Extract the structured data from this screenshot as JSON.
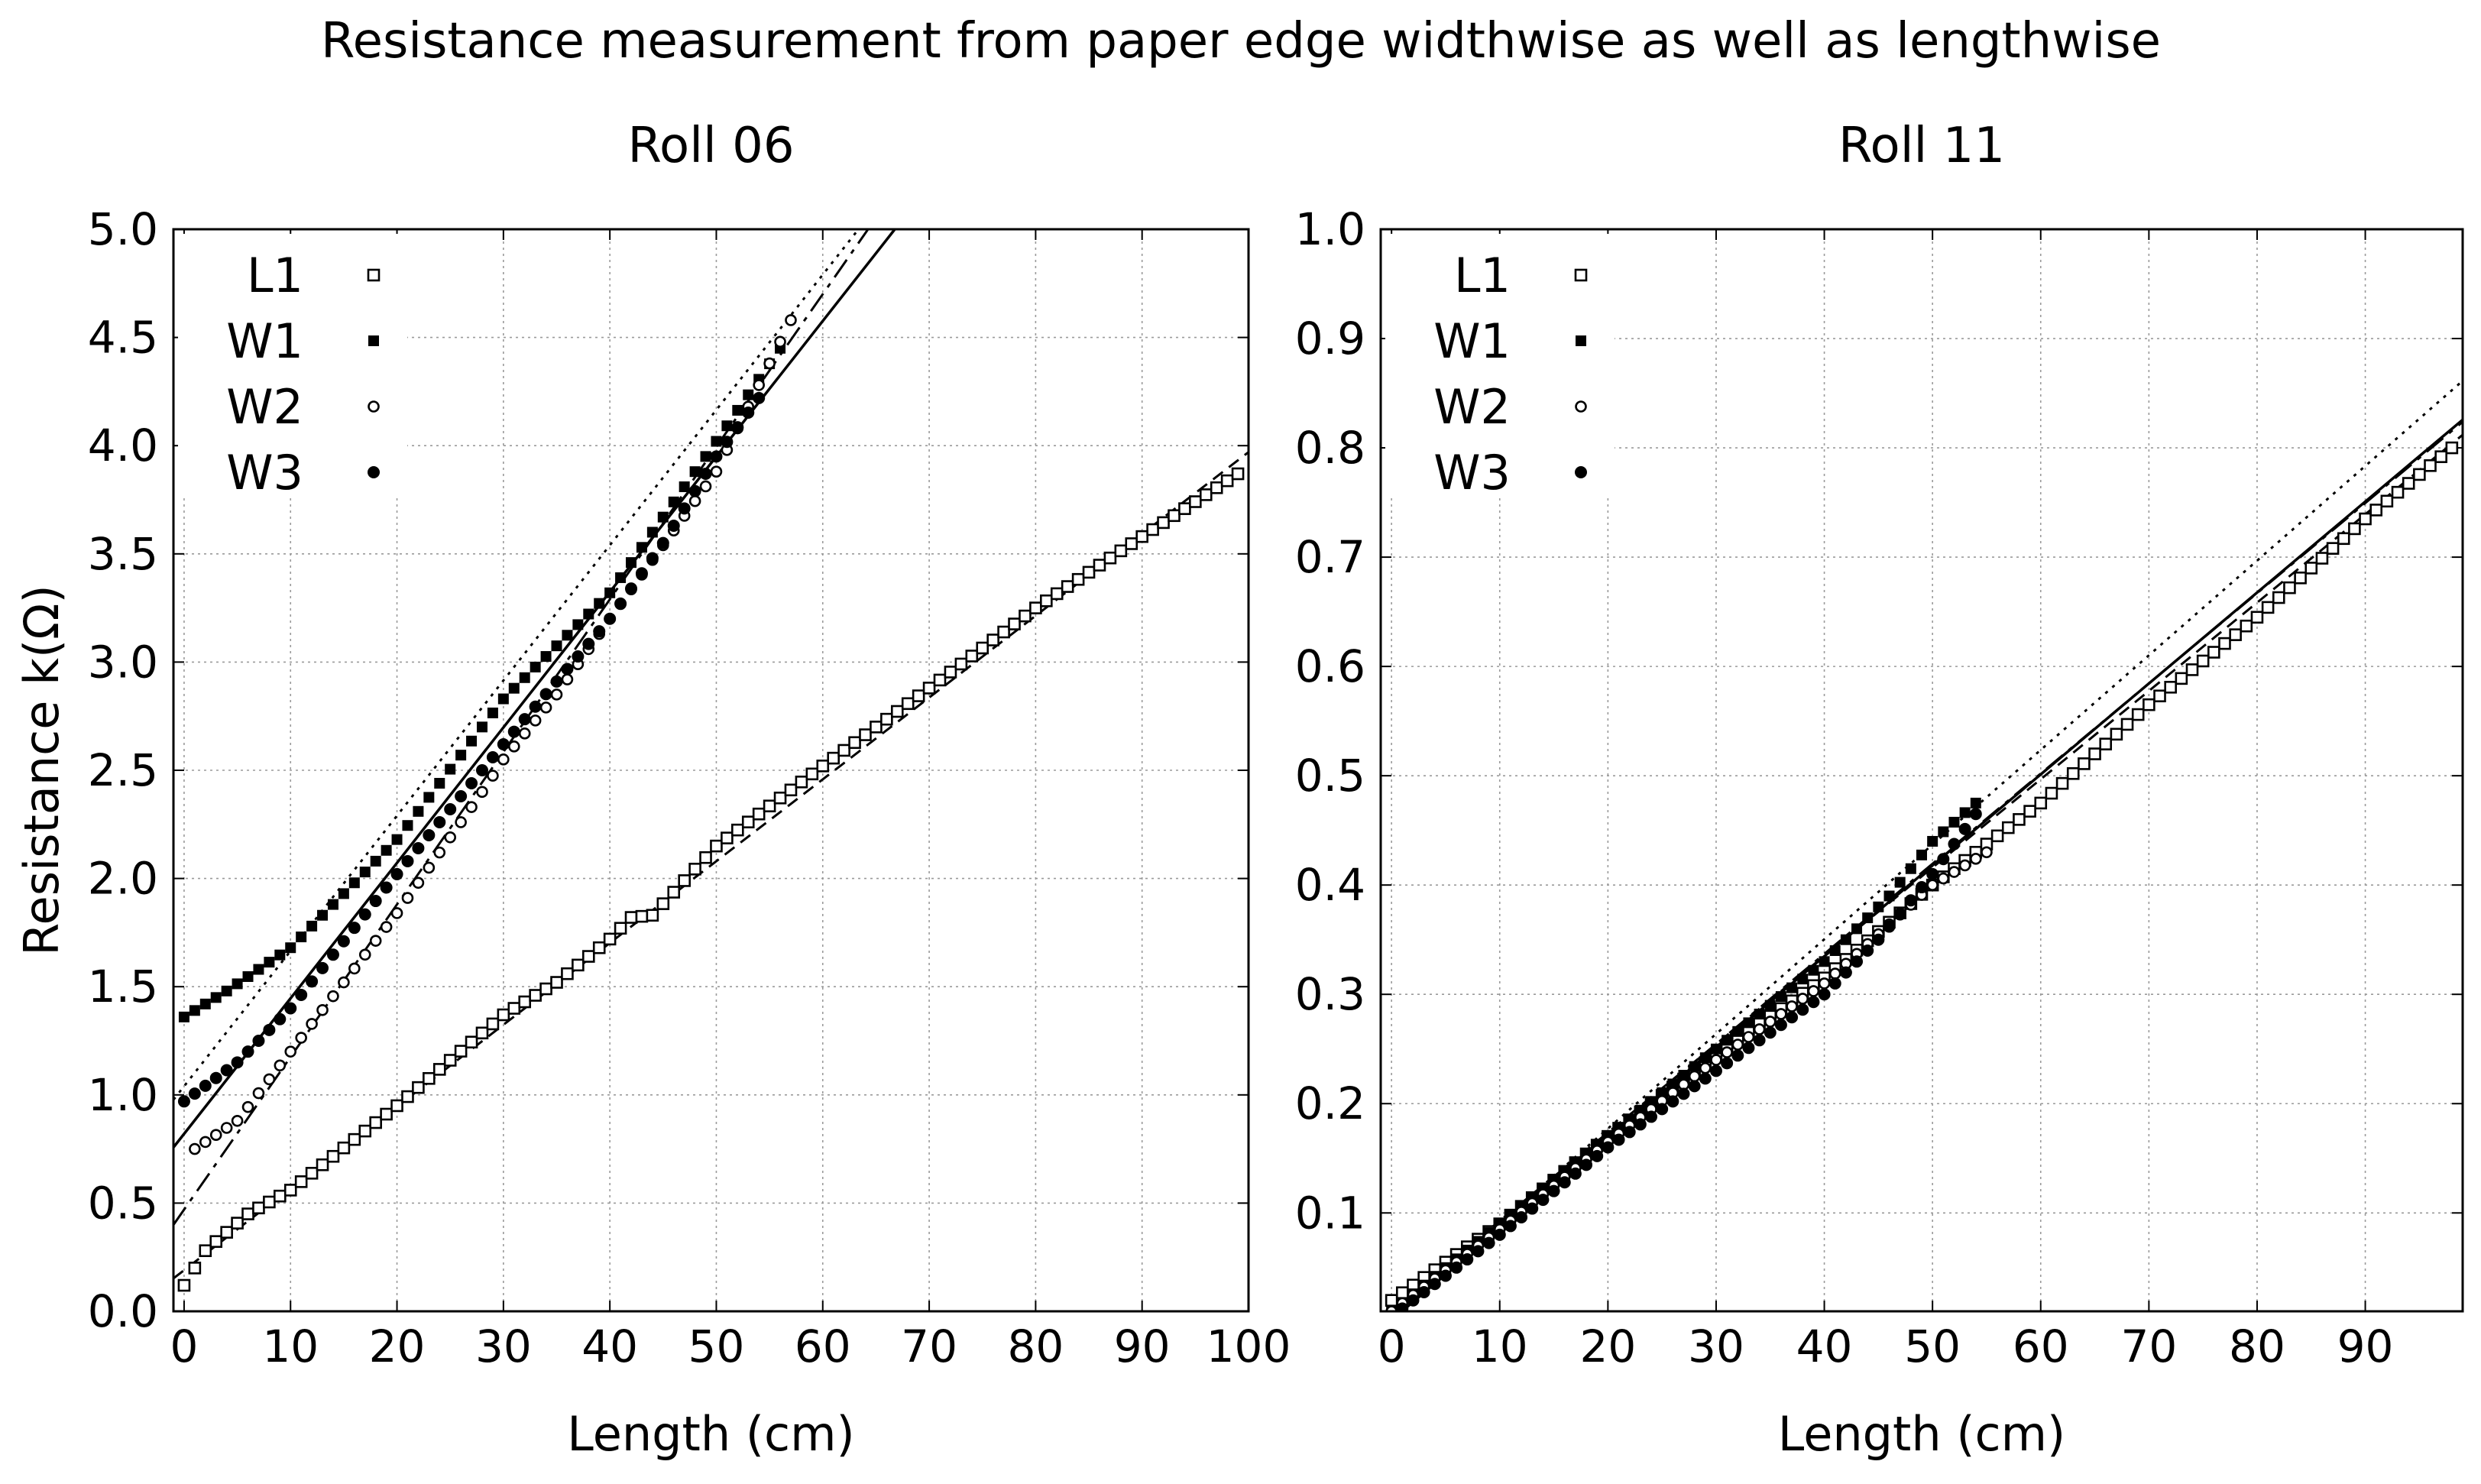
{
  "figure": {
    "title": "Resistance measurement from paper edge widthwise as well as lengthwise"
  },
  "chart_data": [
    {
      "type": "scatter",
      "title": "Roll 06",
      "xlabel": "Length (cm)",
      "ylabel": "Resistance k(Ω)",
      "xlim": [
        -1,
        100
      ],
      "ylim": [
        0,
        5.0
      ],
      "xticks": [
        "0",
        "10",
        "20",
        "30",
        "40",
        "50",
        "60",
        "70",
        "80",
        "90",
        "100"
      ],
      "yticks": [
        "0.0",
        "0.5",
        "1.0",
        "1.5",
        "2.0",
        "2.5",
        "3.0",
        "3.5",
        "4.0",
        "4.5",
        "5.0"
      ],
      "grid": true,
      "legend_position": "top-left",
      "series": [
        {
          "name": "L1",
          "marker": "open-square",
          "x_start": 0,
          "x_end": 99,
          "x_step": 1,
          "anchors": [
            [
              0,
              0.12
            ],
            [
              2,
              0.28
            ],
            [
              6,
              0.45
            ],
            [
              10,
              0.56
            ],
            [
              20,
              0.95
            ],
            [
              30,
              1.37
            ],
            [
              35,
              1.52
            ],
            [
              40,
              1.72
            ],
            [
              42,
              1.82
            ],
            [
              44,
              1.83
            ],
            [
              50,
              2.15
            ],
            [
              60,
              2.52
            ],
            [
              70,
              2.88
            ],
            [
              80,
              3.25
            ],
            [
              90,
              3.58
            ],
            [
              99,
              3.87
            ]
          ],
          "fit": {
            "intercept": 0.19,
            "slope": 0.0378
          }
        },
        {
          "name": "W1",
          "marker": "filled-square",
          "x_start": 0,
          "x_end": 56,
          "x_step": 1,
          "anchors": [
            [
              0,
              1.36
            ],
            [
              4,
              1.48
            ],
            [
              10,
              1.68
            ],
            [
              20,
              2.18
            ],
            [
              30,
              2.83
            ],
            [
              40,
              3.32
            ],
            [
              50,
              4.02
            ],
            [
              56,
              4.45
            ]
          ],
          "fit": {
            "intercept": 1.04,
            "slope": 0.0625
          }
        },
        {
          "name": "W2",
          "marker": "open-circle",
          "x_start": 1,
          "x_end": 57,
          "x_step": 1,
          "anchors": [
            [
              1,
              0.75
            ],
            [
              5,
              0.88
            ],
            [
              10,
              1.2
            ],
            [
              20,
              1.84
            ],
            [
              28,
              2.4
            ],
            [
              30,
              2.55
            ],
            [
              35,
              2.85
            ],
            [
              40,
              3.2
            ],
            [
              50,
              3.88
            ],
            [
              57,
              4.58
            ]
          ],
          "fit": {
            "intercept": 0.47,
            "slope": 0.0705
          }
        },
        {
          "name": "W3",
          "marker": "filled-circle",
          "x_start": 0,
          "x_end": 54,
          "x_step": 1,
          "anchors": [
            [
              0,
              0.97
            ],
            [
              5,
              1.15
            ],
            [
              10,
              1.4
            ],
            [
              20,
              2.02
            ],
            [
              30,
              2.62
            ],
            [
              40,
              3.2
            ],
            [
              45,
              3.55
            ],
            [
              50,
              3.95
            ],
            [
              54,
              4.22
            ]
          ],
          "fit": {
            "intercept": 0.82,
            "slope": 0.0626
          }
        }
      ]
    },
    {
      "type": "scatter",
      "title": "Roll 11",
      "xlabel": "Length (cm)",
      "ylabel": "",
      "xlim": [
        -1,
        99
      ],
      "ylim": [
        0.01,
        1.0
      ],
      "xticks": [
        "0",
        "10",
        "20",
        "30",
        "40",
        "50",
        "60",
        "70",
        "80",
        "90"
      ],
      "yticks": [
        "0.1",
        "0.2",
        "0.3",
        "0.4",
        "0.5",
        "0.6",
        "0.7",
        "0.8",
        "0.9",
        "1.0"
      ],
      "grid": true,
      "legend_position": "top-left",
      "series": [
        {
          "name": "L1",
          "marker": "open-square",
          "x_start": 0,
          "x_end": 98,
          "x_step": 1,
          "anchors": [
            [
              0,
              0.02
            ],
            [
              10,
              0.09
            ],
            [
              20,
              0.17
            ],
            [
              30,
              0.245
            ],
            [
              40,
              0.315
            ],
            [
              50,
              0.4
            ],
            [
              60,
              0.475
            ],
            [
              70,
              0.565
            ],
            [
              80,
              0.645
            ],
            [
              90,
              0.735
            ],
            [
              98,
              0.8
            ]
          ],
          "fit": {
            "intercept": 0.012,
            "slope": 0.00808
          }
        },
        {
          "name": "W1",
          "marker": "filled-square",
          "x_start": 0,
          "x_end": 54,
          "x_step": 1,
          "anchors": [
            [
              0,
              0.01
            ],
            [
              10,
              0.09
            ],
            [
              20,
              0.17
            ],
            [
              30,
              0.25
            ],
            [
              40,
              0.33
            ],
            [
              46,
              0.39
            ],
            [
              50,
              0.44
            ],
            [
              54,
              0.475
            ]
          ],
          "fit": {
            "intercept": 0.004,
            "slope": 0.00866
          }
        },
        {
          "name": "W2",
          "marker": "open-circle",
          "x_start": 0,
          "x_end": 55,
          "x_step": 1,
          "anchors": [
            [
              0,
              0.01
            ],
            [
              10,
              0.085
            ],
            [
              20,
              0.165
            ],
            [
              30,
              0.24
            ],
            [
              40,
              0.31
            ],
            [
              50,
              0.4
            ],
            [
              55,
              0.43
            ]
          ],
          "fit": {
            "intercept": 0.007,
            "slope": 0.00825
          }
        },
        {
          "name": "W3",
          "marker": "filled-circle",
          "x_start": 0,
          "x_end": 54,
          "x_step": 1,
          "anchors": [
            [
              0,
              0.005
            ],
            [
              10,
              0.08
            ],
            [
              20,
              0.16
            ],
            [
              30,
              0.23
            ],
            [
              40,
              0.3
            ],
            [
              45,
              0.35
            ],
            [
              50,
              0.41
            ],
            [
              54,
              0.465
            ]
          ],
          "fit": {
            "intercept": 0.002,
            "slope": 0.00832
          }
        }
      ]
    }
  ]
}
